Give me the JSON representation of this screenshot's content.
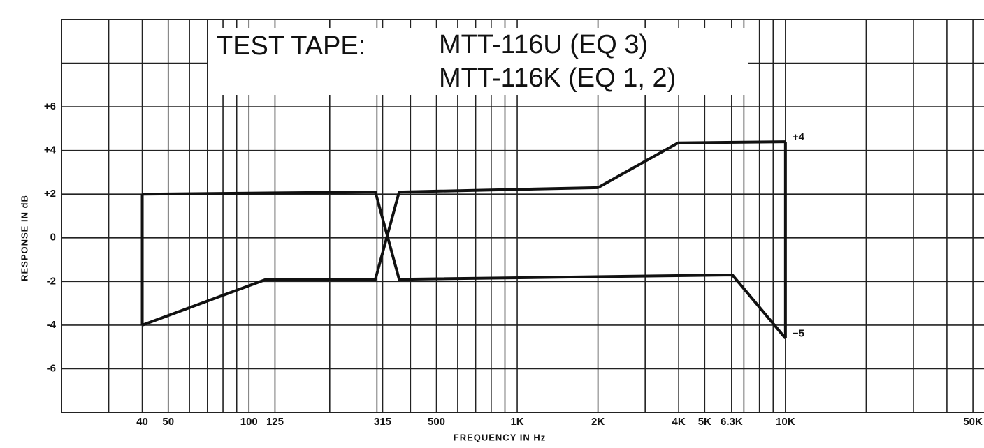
{
  "chart_data": {
    "type": "line",
    "title_lines": [
      "TEST TAPE:",
      "MTT-116U (EQ 3)",
      "MTT-116K (EQ 1, 2)"
    ],
    "x_label": "FREQUENCY IN Hz",
    "y_label": "RESPONSE IN dB",
    "log_x": true,
    "xlim": [
      20,
      55000
    ],
    "ylim": [
      -8,
      10
    ],
    "xticks": [
      40,
      50,
      100,
      125,
      315,
      500,
      {
        "value": 1000,
        "label": "1K"
      },
      {
        "value": 2000,
        "label": "2K"
      },
      {
        "value": 4000,
        "label": "4K"
      },
      {
        "value": 5000,
        "label": "5K"
      },
      {
        "value": 6300,
        "label": "6.3K"
      },
      {
        "value": 10000,
        "label": "10K"
      },
      {
        "value": 50000,
        "label": "50K"
      }
    ],
    "yticks": [
      {
        "value": 6,
        "label": "+6"
      },
      {
        "value": 4,
        "label": "+4"
      },
      {
        "value": 2,
        "label": "+2"
      },
      0,
      -2,
      -4,
      -6
    ],
    "xgrid": [
      30,
      60,
      70,
      80,
      90,
      200,
      300,
      400,
      600,
      700,
      800,
      900,
      3000,
      7000,
      8000,
      9000,
      20000,
      30000,
      40000
    ],
    "ygrid": [
      8
    ],
    "grid": true,
    "join_ends": true,
    "series": [
      {
        "name": null,
        "color": "#111",
        "x": [
          40,
          296,
          363,
          6340,
          10000
        ],
        "values": [
          2,
          2.1,
          -1.9,
          -1.7,
          -4.6
        ]
      },
      {
        "name": null,
        "color": "#111",
        "x": [
          40,
          116,
          296,
          363,
          2000,
          3980,
          10000
        ],
        "values": [
          -4,
          -1.9,
          -1.9,
          2.1,
          2.3,
          4.35,
          4.4
        ]
      }
    ],
    "annotations": [
      {
        "text": "+4",
        "x": 10000,
        "y": 4.4
      },
      {
        "text": "−5",
        "x": 10000,
        "y": -4.6
      }
    ]
  }
}
